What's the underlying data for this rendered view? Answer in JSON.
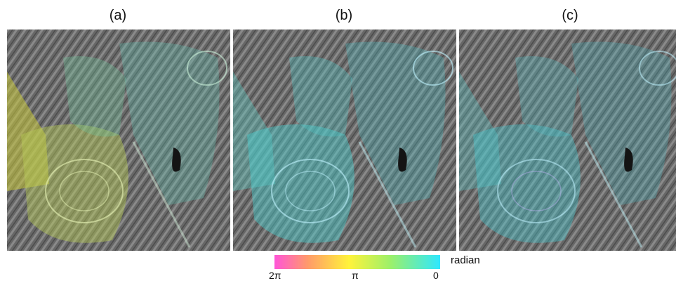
{
  "panels": [
    {
      "label": "(a)"
    },
    {
      "label": "(b)"
    },
    {
      "label": "(c)"
    }
  ],
  "colorbar": {
    "unit": "radian",
    "ticks": [
      "2π",
      "π",
      "0"
    ],
    "colors": [
      "#ff55d8",
      "#ff9a6a",
      "#fff33b",
      "#9cf06a",
      "#2ee7ff"
    ]
  }
}
